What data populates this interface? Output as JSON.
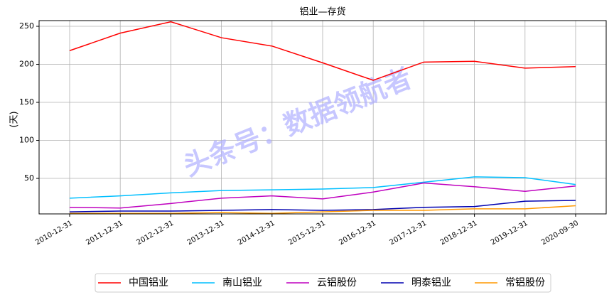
{
  "chart_data": {
    "type": "line",
    "title": "铝业—存货",
    "y_label": "(天)",
    "watermark": "头条号：数据领航者",
    "categories": [
      "2010-12-31",
      "2011-12-31",
      "2012-12-31",
      "2013-12-31",
      "2014-12-31",
      "2015-12-31",
      "2016-12-31",
      "2017-12-31",
      "2018-12-31",
      "2019-12-31",
      "2020-09-30"
    ],
    "series": [
      {
        "name": "中国铝业",
        "color": "#ff0000",
        "values": [
          218,
          241,
          256,
          235,
          224,
          202,
          179,
          203,
          204,
          195,
          197
        ]
      },
      {
        "name": "南山铝业",
        "color": "#00bfff",
        "values": [
          24,
          27,
          31,
          34,
          35,
          36,
          38,
          45,
          52,
          51,
          42
        ]
      },
      {
        "name": "云铝股份",
        "color": "#bf00bf",
        "values": [
          12,
          11,
          17,
          24,
          27,
          23,
          32,
          44,
          39,
          33,
          40
        ]
      },
      {
        "name": "明泰铝业",
        "color": "#0000b0",
        "values": [
          6,
          7,
          7,
          8,
          9,
          8,
          9,
          12,
          13,
          20,
          21
        ]
      },
      {
        "name": "常铝股份",
        "color": "#ff9900",
        "values": [
          4,
          4,
          4,
          5,
          4,
          6,
          8,
          8,
          10,
          10,
          14
        ]
      }
    ],
    "ylim": [
      3.3,
      257.5
    ],
    "yticks": [
      50,
      100,
      150,
      200,
      250
    ],
    "grid": true,
    "legend": "bottom"
  }
}
